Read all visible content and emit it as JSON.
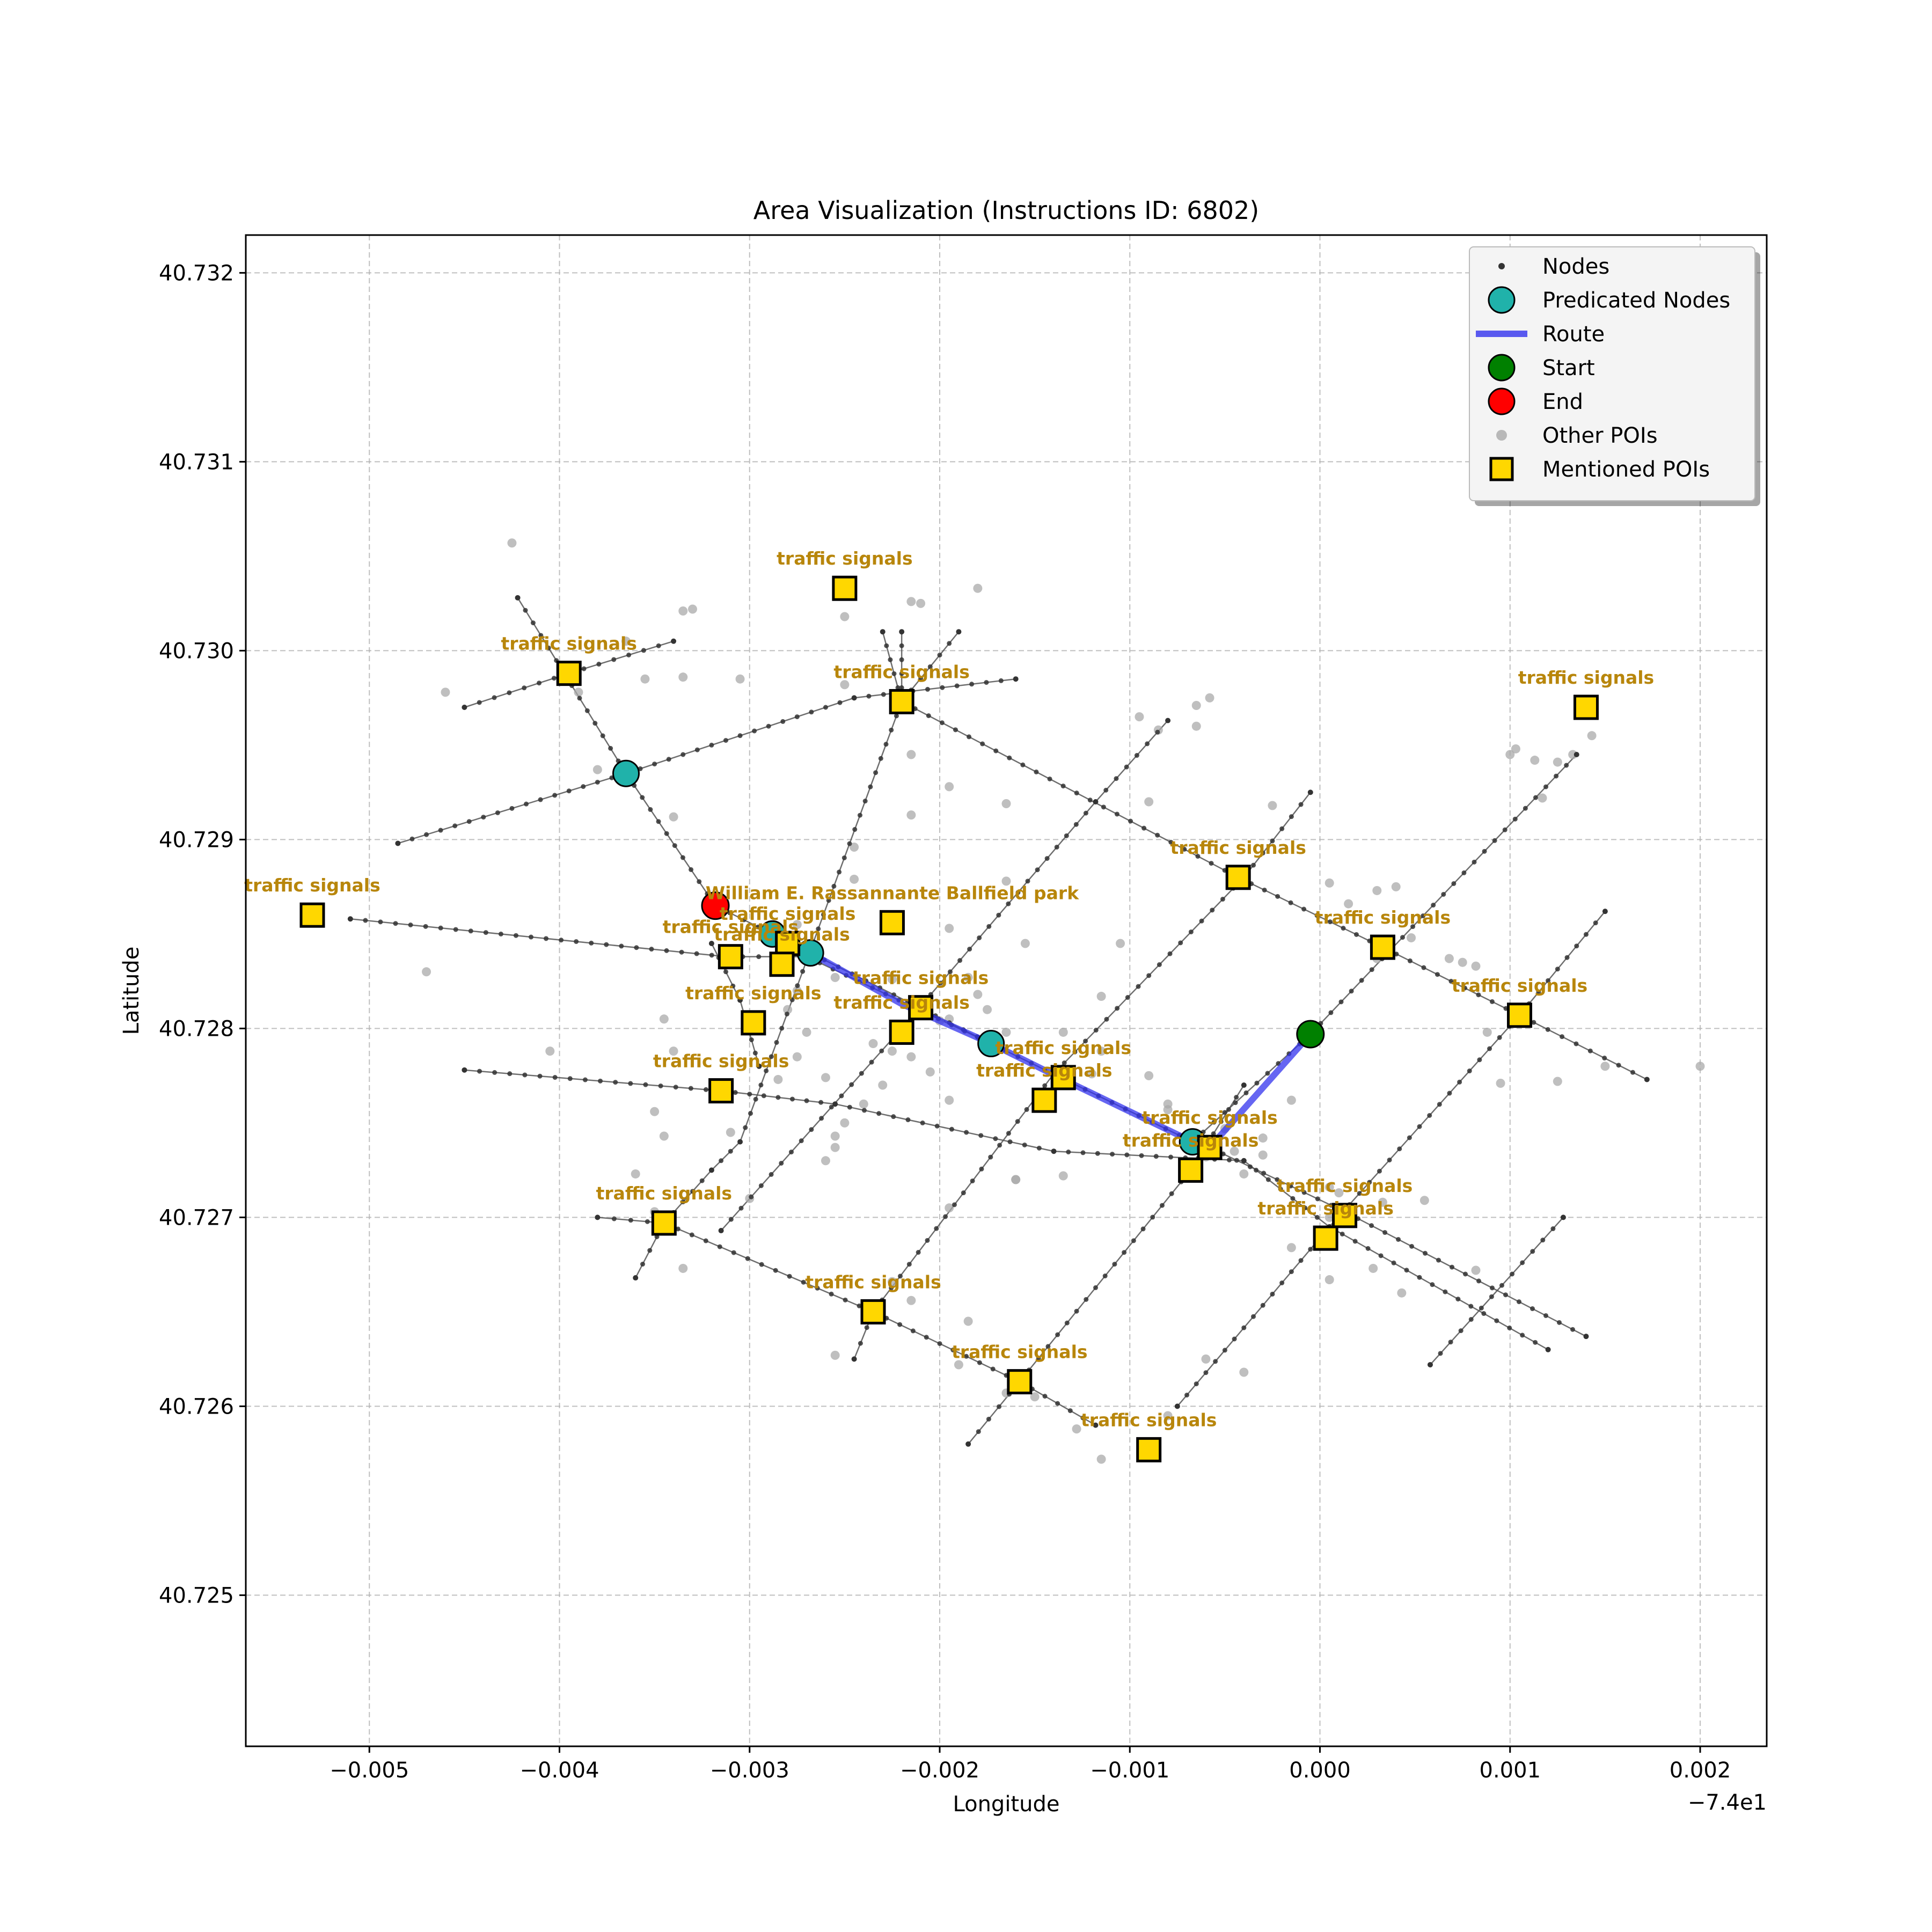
{
  "chart_data": {
    "type": "scatter",
    "title": "Area Visualization (Instructions ID: 6802)",
    "xlabel": "Longitude",
    "ylabel": "Latitude",
    "x_offset_label": "−7.4e1",
    "xlim": [
      -0.00565,
      0.00235
    ],
    "ylim": [
      40.7242,
      40.7322
    ],
    "x_ticks": [
      -0.005,
      -0.004,
      -0.003,
      -0.002,
      -0.001,
      0.0,
      0.001,
      0.002
    ],
    "x_tick_labels": [
      "−0.005",
      "−0.004",
      "−0.003",
      "−0.002",
      "−0.001",
      "0.000",
      "0.001",
      "0.002"
    ],
    "y_ticks": [
      40.725,
      40.726,
      40.727,
      40.728,
      40.729,
      40.73,
      40.731,
      40.732
    ],
    "y_tick_labels": [
      "40.725",
      "40.726",
      "40.727",
      "40.728",
      "40.729",
      "40.730",
      "40.731",
      "40.732"
    ],
    "grid": true,
    "legend_position": "top-right",
    "legend": [
      {
        "label": "Nodes",
        "marker": "node"
      },
      {
        "label": "Predicated Nodes",
        "marker": "predicated"
      },
      {
        "label": "Route",
        "marker": "route"
      },
      {
        "label": "Start",
        "marker": "start"
      },
      {
        "label": "End",
        "marker": "end"
      },
      {
        "label": "Other POIs",
        "marker": "other"
      },
      {
        "label": "Mentioned POIs",
        "marker": "mentioned"
      }
    ],
    "colors": {
      "node": "#333333",
      "edge": "#555555",
      "predicated": "#20b2aa",
      "route": "#3333ee",
      "start": "#008000",
      "end": "#ff0000",
      "other_poi": "#a9a9a9",
      "mentioned_poi": "#ffd700",
      "poi_label": "#b8860b"
    },
    "streets": [
      [
        [
          -0.00422,
          40.73028
        ],
        [
          -0.00365,
          40.72935
        ],
        [
          -0.00318,
          40.72865
        ],
        [
          -0.00288,
          40.7285
        ],
        [
          -0.00268,
          40.7284
        ],
        [
          -0.00173,
          40.72792
        ],
        [
          -0.00067,
          40.7274
        ],
        [
          -5e-05,
          40.72797
        ],
        [
          0.00135,
          40.72945
        ]
      ],
      [
        [
          -0.00485,
          40.72898
        ],
        [
          -0.00365,
          40.72935
        ],
        [
          -0.00245,
          40.72975
        ],
        [
          -0.0016,
          40.72985
        ]
      ],
      [
        [
          -0.0045,
          40.7297
        ],
        [
          -0.00395,
          40.72988
        ],
        [
          -0.0034,
          40.73005
        ]
      ],
      [
        [
          -0.0022,
          40.7301
        ],
        [
          -0.0022,
          40.72973
        ],
        [
          -0.00043,
          40.7288
        ],
        [
          0.00033,
          40.72843
        ],
        [
          0.00105,
          40.72807
        ],
        [
          0.00172,
          40.72773
        ]
      ],
      [
        [
          -0.0023,
          40.7301
        ],
        [
          -0.0022,
          40.72973
        ],
        [
          -0.00305,
          40.7274
        ],
        [
          -0.0032,
          40.72725
        ],
        [
          -0.00345,
          40.72697
        ],
        [
          -0.0036,
          40.72668
        ]
      ],
      [
        [
          -0.0019,
          40.7301
        ],
        [
          -0.0022,
          40.72973
        ]
      ],
      [
        [
          -0.0051,
          40.72858
        ],
        [
          -0.00312,
          40.72838
        ],
        [
          -0.0027,
          40.72838
        ],
        [
          -0.00173,
          40.72792
        ]
      ],
      [
        [
          -0.0045,
          40.72778
        ],
        [
          -0.00315,
          40.72767
        ],
        [
          -0.00255,
          40.7276
        ],
        [
          -0.0014,
          40.72735
        ],
        [
          -0.0004,
          40.7273
        ],
        [
          5e-05,
          40.72695
        ],
        [
          0.0012,
          40.7263
        ]
      ],
      [
        [
          -0.0038,
          40.727
        ],
        [
          -0.00345,
          40.72697
        ],
        [
          -0.00235,
          40.7265
        ],
        [
          -0.00158,
          40.72613
        ],
        [
          -0.00118,
          40.7259
        ]
      ],
      [
        [
          -0.00245,
          40.72625
        ],
        [
          -0.00235,
          40.7265
        ],
        [
          -0.0014,
          40.72776
        ],
        [
          -0.0004,
          40.7288
        ],
        [
          -5e-05,
          40.72925
        ]
      ],
      [
        [
          -0.00315,
          40.72693
        ],
        [
          -0.0022,
          40.728
        ],
        [
          -0.00118,
          40.7292
        ],
        [
          -0.0008,
          40.72963
        ]
      ],
      [
        [
          -0.00185,
          40.7258
        ],
        [
          -0.00158,
          40.72613
        ],
        [
          -0.00068,
          40.72725
        ],
        [
          -0.0004,
          40.7277
        ]
      ],
      [
        [
          -0.00075,
          40.726
        ],
        [
          5e-05,
          40.72695
        ],
        [
          0.00105,
          40.72807
        ],
        [
          0.0015,
          40.72862
        ]
      ],
      [
        [
          0.00058,
          40.72622
        ],
        [
          0.00128,
          40.727
        ]
      ],
      [
        [
          -0.00058,
          40.72737
        ],
        [
          0.00013,
          40.72703
        ],
        [
          0.0014,
          40.72637
        ]
      ],
      [
        [
          -0.0032,
          40.72845
        ],
        [
          -0.00305,
          40.72815
        ],
        [
          -0.00295,
          40.7278
        ]
      ]
    ],
    "route": [
      [
        -0.00268,
        40.7284
      ],
      [
        -0.0022,
        40.72813
      ],
      [
        -0.00173,
        40.72792
      ],
      [
        -0.00135,
        40.72773
      ],
      [
        -0.00067,
        40.7274
      ],
      [
        -0.00058,
        40.72737
      ],
      [
        -5e-05,
        40.72797
      ]
    ],
    "predicated_nodes": [
      [
        -0.00365,
        40.72935
      ],
      [
        -0.00288,
        40.7285
      ],
      [
        -0.00268,
        40.7284
      ],
      [
        -0.00173,
        40.72792
      ],
      [
        -0.00067,
        40.7274
      ]
    ],
    "start": [
      -5e-05,
      40.72797
    ],
    "end": [
      -0.00318,
      40.72865
    ],
    "other_pois": [
      [
        -0.00425,
        40.73057
      ],
      [
        -0.0033,
        40.73022
      ],
      [
        -0.00335,
        40.73021
      ],
      [
        -0.00365,
        40.73005
      ],
      [
        -0.0046,
        40.72978
      ],
      [
        -0.0039,
        40.72978
      ],
      [
        -0.00355,
        40.72985
      ],
      [
        -0.00335,
        40.72986
      ],
      [
        -0.00305,
        40.72985
      ],
      [
        -0.0025,
        40.73018
      ],
      [
        -0.0025,
        40.72982
      ],
      [
        -0.0018,
        40.73033
      ],
      [
        -0.00215,
        40.73026
      ],
      [
        -0.0021,
        40.73025
      ],
      [
        -0.0038,
        40.72937
      ],
      [
        -0.0034,
        40.72912
      ],
      [
        -0.00215,
        40.72945
      ],
      [
        -0.00195,
        40.72928
      ],
      [
        -0.00215,
        40.72913
      ],
      [
        -0.00165,
        40.72919
      ],
      [
        -0.00095,
        40.72965
      ],
      [
        -0.00085,
        40.72958
      ],
      [
        -0.00065,
        40.72971
      ],
      [
        -0.00058,
        40.72975
      ],
      [
        -0.00065,
        40.7296
      ],
      [
        -0.0009,
        40.7292
      ],
      [
        -0.00025,
        40.72918
      ],
      [
        -0.00245,
        40.72896
      ],
      [
        -0.00245,
        40.72879
      ],
      [
        -0.00165,
        40.72878
      ],
      [
        -0.00195,
        40.72853
      ],
      [
        -0.00155,
        40.72845
      ],
      [
        -0.00275,
        40.72855
      ],
      [
        -0.00255,
        40.72827
      ],
      [
        -0.00225,
        40.72826
      ],
      [
        -0.00185,
        40.72827
      ],
      [
        -0.0018,
        40.72818
      ],
      [
        -0.00175,
        40.7281
      ],
      [
        -0.00165,
        40.72798
      ],
      [
        -0.00195,
        40.72805
      ],
      [
        -0.002,
        40.72804
      ],
      [
        -0.0022,
        40.72802
      ],
      [
        -0.00235,
        40.72792
      ],
      [
        -0.00275,
        40.7282
      ],
      [
        -0.0028,
        40.7281
      ],
      [
        -0.0027,
        40.72798
      ],
      [
        -0.00345,
        40.72805
      ],
      [
        -0.0047,
        40.7283
      ],
      [
        -0.00405,
        40.72788
      ],
      [
        -0.0034,
        40.72788
      ],
      [
        -0.00225,
        40.72788
      ],
      [
        -0.00215,
        40.72785
      ],
      [
        -0.00205,
        40.72777
      ],
      [
        -0.00285,
        40.72773
      ],
      [
        -0.0023,
        40.7277
      ],
      [
        -0.0024,
        40.7276
      ],
      [
        -0.0025,
        40.7275
      ],
      [
        -0.00255,
        40.72743
      ],
      [
        -0.00195,
        40.72762
      ],
      [
        -0.00345,
        40.72743
      ],
      [
        -0.0036,
        40.72723
      ],
      [
        -0.0026,
        40.7273
      ],
      [
        -0.00255,
        40.72737
      ],
      [
        -0.00135,
        40.72798
      ],
      [
        -0.00115,
        40.72788
      ],
      [
        -0.0012,
        40.72776
      ],
      [
        -0.00135,
        40.72722
      ],
      [
        -0.0016,
        40.7272
      ],
      [
        -0.0008,
        40.7276
      ],
      [
        -0.0008,
        40.72757
      ],
      [
        -0.0005,
        40.72747
      ],
      [
        -0.00045,
        40.72735
      ],
      [
        -0.0006,
        40.72732
      ],
      [
        -0.0003,
        40.72733
      ],
      [
        -0.0004,
        40.72723
      ],
      [
        -0.00015,
        40.72762
      ],
      [
        -0.00115,
        40.72817
      ],
      [
        -0.0009,
        40.72775
      ],
      [
        -0.0003,
        40.72742
      ],
      [
        -0.00105,
        40.72845
      ],
      [
        5e-05,
        40.72877
      ],
      [
        0.00015,
        40.72866
      ],
      [
        0.0003,
        40.72837
      ],
      [
        0.0003,
        40.72873
      ],
      [
        0.0004,
        40.72875
      ],
      [
        0.00048,
        40.72848
      ],
      [
        0.00068,
        40.72837
      ],
      [
        0.00082,
        40.72833
      ],
      [
        0.00075,
        40.72835
      ],
      [
        0.00088,
        40.72798
      ],
      [
        0.00095,
        40.72771
      ],
      [
        0.00125,
        40.72772
      ],
      [
        0.00033,
        40.72708
      ],
      [
        0.00055,
        40.72709
      ],
      [
        5e-05,
        40.72716
      ],
      [
        0.0001,
        40.72713
      ],
      [
        5e-05,
        40.727
      ],
      [
        -0.00015,
        40.72684
      ],
      [
        5e-05,
        40.72667
      ],
      [
        0.00028,
        40.72673
      ],
      [
        0.00043,
        40.7266
      ],
      [
        0.00082,
        40.72672
      ],
      [
        0.001,
        40.72945
      ],
      [
        0.00103,
        40.72948
      ],
      [
        0.00113,
        40.72942
      ],
      [
        0.00125,
        40.72941
      ],
      [
        0.00133,
        40.72945
      ],
      [
        0.00143,
        40.72955
      ],
      [
        0.00117,
        40.72922
      ],
      [
        0.0015,
        40.7278
      ],
      [
        0.002,
        40.7278
      ],
      [
        -0.00225,
        40.72666
      ],
      [
        -0.00215,
        40.72656
      ],
      [
        -0.00255,
        40.72627
      ],
      [
        -0.00335,
        40.72673
      ],
      [
        -0.0035,
        40.72703
      ],
      [
        -0.003,
        40.7271
      ],
      [
        -0.00185,
        40.72645
      ],
      [
        -0.00195,
        40.72705
      ],
      [
        -0.0019,
        40.72622
      ],
      [
        -0.0016,
        40.7272
      ],
      [
        -0.00128,
        40.72588
      ],
      [
        -0.00115,
        40.72572
      ],
      [
        -0.0008,
        40.72595
      ],
      [
        -0.0006,
        40.72625
      ],
      [
        -0.0004,
        40.72618
      ],
      [
        -0.00165,
        40.72607
      ],
      [
        -0.0015,
        40.72605
      ],
      [
        -0.0035,
        40.72756
      ],
      [
        -0.0031,
        40.72745
      ],
      [
        -0.00275,
        40.72785
      ],
      [
        -0.0026,
        40.72774
      ]
    ],
    "mentioned_pois": [
      {
        "name": "traffic signals",
        "x": -0.0025,
        "y": 40.73033
      },
      {
        "name": "traffic signals",
        "x": -0.00395,
        "y": 40.72988
      },
      {
        "name": "traffic signals",
        "x": -0.0022,
        "y": 40.72973
      },
      {
        "name": "traffic signals",
        "x": 0.0014,
        "y": 40.7297
      },
      {
        "name": "traffic signals",
        "x": -0.00043,
        "y": 40.7288
      },
      {
        "name": "traffic signals",
        "x": -0.0053,
        "y": 40.7286
      },
      {
        "name": "William E. Rassannante Ballfield   park",
        "x": -0.00225,
        "y": 40.72856
      },
      {
        "name": "traffic signals",
        "x": 0.00033,
        "y": 40.72843
      },
      {
        "name": "traffic signals",
        "x": -0.0031,
        "y": 40.72838
      },
      {
        "name": "traffic signals",
        "x": -0.0028,
        "y": 40.72845
      },
      {
        "name": "traffic signals",
        "x": -0.00283,
        "y": 40.72834
      },
      {
        "name": "traffic signals",
        "x": -0.0021,
        "y": 40.72811
      },
      {
        "name": "traffic signals",
        "x": 0.00105,
        "y": 40.72807
      },
      {
        "name": "traffic signals",
        "x": -0.00298,
        "y": 40.72803
      },
      {
        "name": "traffic signals",
        "x": -0.0022,
        "y": 40.72798
      },
      {
        "name": "traffic signals",
        "x": -0.00135,
        "y": 40.72774
      },
      {
        "name": "traffic signals",
        "x": -0.00315,
        "y": 40.72767
      },
      {
        "name": "traffic signals",
        "x": -0.00145,
        "y": 40.72762
      },
      {
        "name": "traffic signals",
        "x": -0.00058,
        "y": 40.72737
      },
      {
        "name": "traffic signals",
        "x": -0.00068,
        "y": 40.72725
      },
      {
        "name": "traffic signals",
        "x": 0.00013,
        "y": 40.72701
      },
      {
        "name": "traffic signals",
        "x": 3e-05,
        "y": 40.72689
      },
      {
        "name": "traffic signals",
        "x": -0.00345,
        "y": 40.72697
      },
      {
        "name": "traffic signals",
        "x": -0.00235,
        "y": 40.7265
      },
      {
        "name": "traffic signals",
        "x": -0.00158,
        "y": 40.72613
      },
      {
        "name": "traffic signals",
        "x": -0.0009,
        "y": 40.72577
      }
    ]
  }
}
